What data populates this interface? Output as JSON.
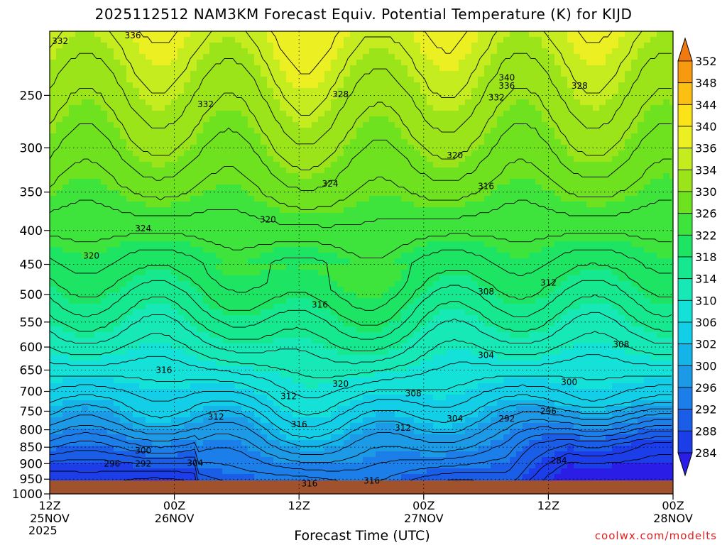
{
  "header": {
    "title": "2025112512 NAM3KM Forecast Equiv. Potential Temperature (K) for KIJD"
  },
  "footer": {
    "credit": "coolwx.com/modelts",
    "year": "2025"
  },
  "chart_data": {
    "type": "heatmap",
    "title": "2025112512 NAM3KM Forecast Equiv. Potential Temperature (K) for KIJD",
    "xlabel": "Forecast Time (UTC)",
    "ylabel": "",
    "y_axis": "pressure (hPa), log scale, inverted",
    "ylim": [
      1000,
      200
    ],
    "y_ticks": [
      250,
      300,
      350,
      400,
      450,
      500,
      550,
      600,
      650,
      700,
      750,
      800,
      850,
      900,
      950,
      1000
    ],
    "x_hours_range": [
      0,
      60
    ],
    "x_ticks": [
      {
        "hour": 0,
        "time": "12Z",
        "date": "25NOV"
      },
      {
        "hour": 12,
        "time": "00Z",
        "date": "26NOV"
      },
      {
        "hour": 24,
        "time": "12Z",
        "date": ""
      },
      {
        "hour": 36,
        "time": "00Z",
        "date": "27NOV"
      },
      {
        "hour": 48,
        "time": "12Z",
        "date": ""
      },
      {
        "hour": 60,
        "time": "00Z",
        "date": "28NOV"
      }
    ],
    "colorbar": {
      "levels": [
        284,
        288,
        292,
        296,
        300,
        302,
        306,
        310,
        314,
        318,
        322,
        326,
        330,
        334,
        336,
        340,
        344,
        348,
        352
      ],
      "colors": [
        "#2a1ee6",
        "#1c3ee8",
        "#1a5ee8",
        "#1c7ee8",
        "#1c9ae6",
        "#14b4e8",
        "#12cee6",
        "#14e2d8",
        "#16e8b6",
        "#16e890",
        "#1ee464",
        "#3ee43c",
        "#6ee21e",
        "#9ce41a",
        "#c4ec1e",
        "#ecf022",
        "#fce218",
        "#fcc012",
        "#f89a10",
        "#f07a10"
      ]
    },
    "contour_labels": [
      {
        "value": "332",
        "hour": 1,
        "p": 207
      },
      {
        "value": "336",
        "hour": 8,
        "p": 203
      },
      {
        "value": "332",
        "hour": 15,
        "p": 258
      },
      {
        "value": "328",
        "hour": 28,
        "p": 249
      },
      {
        "value": "340",
        "hour": 44,
        "p": 235
      },
      {
        "value": "336",
        "hour": 44,
        "p": 242
      },
      {
        "value": "332",
        "hour": 43,
        "p": 252
      },
      {
        "value": "328",
        "hour": 51,
        "p": 242
      },
      {
        "value": "320",
        "hour": 39,
        "p": 308
      },
      {
        "value": "324",
        "hour": 27,
        "p": 340
      },
      {
        "value": "316",
        "hour": 42,
        "p": 343
      },
      {
        "value": "320",
        "hour": 21,
        "p": 385
      },
      {
        "value": "324",
        "hour": 9,
        "p": 397
      },
      {
        "value": "320",
        "hour": 4,
        "p": 437
      },
      {
        "value": "312",
        "hour": 48,
        "p": 480
      },
      {
        "value": "308",
        "hour": 42,
        "p": 495
      },
      {
        "value": "316",
        "hour": 26,
        "p": 518
      },
      {
        "value": "308",
        "hour": 55,
        "p": 595
      },
      {
        "value": "304",
        "hour": 42,
        "p": 617
      },
      {
        "value": "316",
        "hour": 11,
        "p": 650
      },
      {
        "value": "300",
        "hour": 50,
        "p": 678
      },
      {
        "value": "320",
        "hour": 28,
        "p": 682
      },
      {
        "value": "308",
        "hour": 35,
        "p": 705
      },
      {
        "value": "312",
        "hour": 23,
        "p": 712
      },
      {
        "value": "296",
        "hour": 48,
        "p": 750
      },
      {
        "value": "312",
        "hour": 16,
        "p": 765
      },
      {
        "value": "304",
        "hour": 39,
        "p": 770
      },
      {
        "value": "292",
        "hour": 44,
        "p": 770
      },
      {
        "value": "316",
        "hour": 24,
        "p": 785
      },
      {
        "value": "312",
        "hour": 34,
        "p": 795
      },
      {
        "value": "300",
        "hour": 9,
        "p": 860
      },
      {
        "value": "296",
        "hour": 6,
        "p": 900
      },
      {
        "value": "292",
        "hour": 9,
        "p": 900
      },
      {
        "value": "304",
        "hour": 14,
        "p": 898
      },
      {
        "value": "284",
        "hour": 49,
        "p": 890
      },
      {
        "value": "316",
        "hour": 25,
        "p": 965
      },
      {
        "value": "316",
        "hour": 31,
        "p": 955
      }
    ]
  }
}
